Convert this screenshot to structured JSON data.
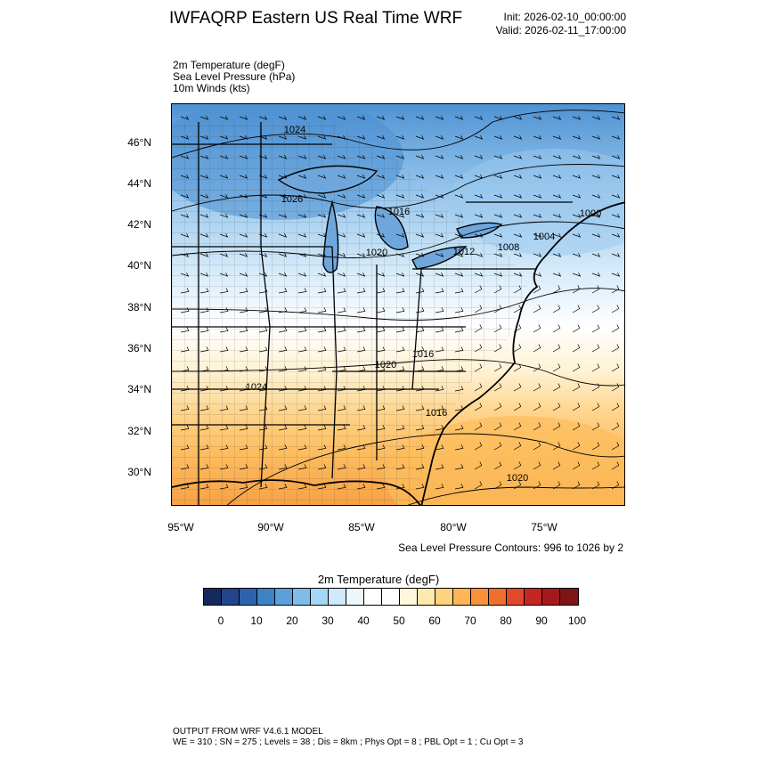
{
  "title": "IWFAQRP Eastern US Real Time WRF",
  "init": "Init: 2026-02-10_00:00:00",
  "valid": "Valid: 2026-02-11_17:00:00",
  "fields": [
    "2m Temperature   (degF)",
    "Sea Level Pressure   (hPa)",
    "10m Winds   (kts)"
  ],
  "lat_labels": [
    "46°N",
    "44°N",
    "42°N",
    "40°N",
    "38°N",
    "36°N",
    "34°N",
    "32°N",
    "30°N"
  ],
  "lon_labels": [
    "95°W",
    "90°W",
    "85°W",
    "80°W",
    "75°W"
  ],
  "slp_note": "Sea Level Pressure Contours: 996 to 1026 by 2",
  "isobar_labels": [
    "1024",
    "1026",
    "1016",
    "1020",
    "1012",
    "1008",
    "1004",
    "1000",
    "1016",
    "1020",
    "1024",
    "1016",
    "1020"
  ],
  "colorbar": {
    "title": "2m Temperature  (degF)",
    "colors": [
      "#142a5e",
      "#22448a",
      "#2e62ad",
      "#3e82c7",
      "#5aa0da",
      "#80bcea",
      "#a6d6f5",
      "#cfe9fa",
      "#edf6fd",
      "#ffffff",
      "#ffffff",
      "#fff6dc",
      "#fee8ad",
      "#fed27f",
      "#fdb555",
      "#f89238",
      "#ef6f2e",
      "#e04a2a",
      "#c42525",
      "#a41a1c",
      "#7e1416"
    ],
    "ticks": [
      "0",
      "10",
      "20",
      "30",
      "40",
      "50",
      "60",
      "70",
      "80",
      "90",
      "100"
    ]
  },
  "footer": {
    "line1": "OUTPUT FROM WRF V4.6.1 MODEL",
    "line2": "WE = 310 ; SN = 275 ; Levels = 38 ; Dis = 8km ; Phys Opt = 8 ; PBL Opt = 1 ; Cu Opt = 3"
  }
}
